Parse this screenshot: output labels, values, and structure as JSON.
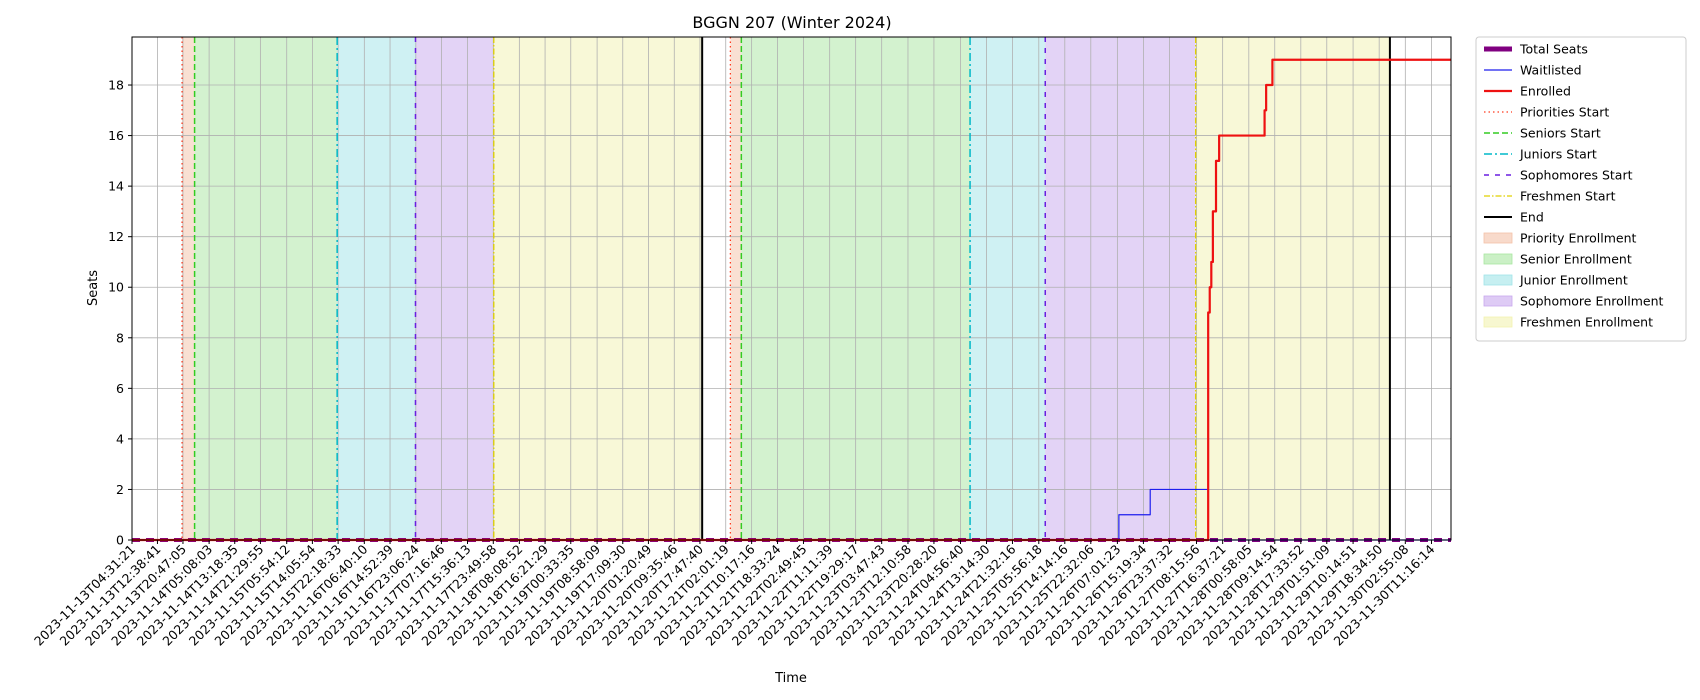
{
  "chart_data": {
    "type": "line",
    "title": "BGGN 207 (Winter 2024)",
    "xlabel": "Time",
    "ylabel": "Seats",
    "ylim": [
      0,
      19.9
    ],
    "yticks": [
      0,
      2,
      4,
      6,
      8,
      10,
      12,
      14,
      16,
      18
    ],
    "grid": true,
    "legend_position": "outside-top-right",
    "x_start": "2023-11-13T04:31:21",
    "x_end": "2023-11-30T17:30:00",
    "xtick_labels": [
      "2023-11-13T04:31:21",
      "2023-11-13T12:38:41",
      "2023-11-13T20:47:05",
      "2023-11-14T05:08:03",
      "2023-11-14T13:18:35",
      "2023-11-14T21:29:55",
      "2023-11-15T05:54:12",
      "2023-11-15T14:05:54",
      "2023-11-15T22:18:33",
      "2023-11-16T06:40:10",
      "2023-11-16T14:52:39",
      "2023-11-16T23:06:24",
      "2023-11-17T07:16:46",
      "2023-11-17T15:36:13",
      "2023-11-17T23:49:58",
      "2023-11-18T08:08:52",
      "2023-11-18T16:21:29",
      "2023-11-19T00:33:35",
      "2023-11-19T08:58:09",
      "2023-11-19T17:09:30",
      "2023-11-20T01:20:49",
      "2023-11-20T09:35:46",
      "2023-11-20T17:47:40",
      "2023-11-21T02:01:19",
      "2023-11-21T10:17:16",
      "2023-11-21T18:33:24",
      "2023-11-22T02:49:45",
      "2023-11-22T11:11:39",
      "2023-11-22T19:29:17",
      "2023-11-23T03:47:43",
      "2023-11-23T12:10:58",
      "2023-11-23T20:28:20",
      "2023-11-24T04:56:40",
      "2023-11-24T13:14:30",
      "2023-11-24T21:32:16",
      "2023-11-25T05:56:18",
      "2023-11-25T14:14:16",
      "2023-11-25T22:32:06",
      "2023-11-26T07:01:23",
      "2023-11-26T15:19:34",
      "2023-11-26T23:37:32",
      "2023-11-27T08:15:56",
      "2023-11-27T16:37:21",
      "2023-11-28T00:58:05",
      "2023-11-28T09:14:54",
      "2023-11-28T17:33:52",
      "2023-11-29T01:51:09",
      "2023-11-29T10:14:51",
      "2023-11-29T18:34:50",
      "2023-11-30T02:55:08",
      "2023-11-30T11:16:14"
    ],
    "spans": [
      {
        "name": "Priority Enrollment",
        "color": "#f4c2a8",
        "start": "2023-11-13T20:30:00",
        "end": "2023-11-14T00:30:00"
      },
      {
        "name": "Senior Enrollment",
        "color": "#a8e6a0",
        "start": "2023-11-14T00:30:00",
        "end": "2023-11-15T22:00:00"
      },
      {
        "name": "Junior Enrollment",
        "color": "#a0e4e8",
        "start": "2023-11-15T22:00:00",
        "end": "2023-11-16T23:00:00"
      },
      {
        "name": "Sophomore Enrollment",
        "color": "#c8a8ee",
        "start": "2023-11-16T23:00:00",
        "end": "2023-11-18T00:00:00"
      },
      {
        "name": "Freshmen Enrollment",
        "color": "#f2f2b0",
        "start": "2023-11-18T00:00:00",
        "end": "2023-11-20T18:30:00"
      },
      {
        "name": "Priority Enrollment",
        "color": "#f4c2a8",
        "start": "2023-11-21T03:30:00",
        "end": "2023-11-21T07:00:00"
      },
      {
        "name": "Senior Enrollment",
        "color": "#a8e6a0",
        "start": "2023-11-21T07:00:00",
        "end": "2023-11-24T08:00:00"
      },
      {
        "name": "Junior Enrollment",
        "color": "#a0e4e8",
        "start": "2023-11-24T08:00:00",
        "end": "2023-11-25T08:00:00"
      },
      {
        "name": "Sophomore Enrollment",
        "color": "#c8a8ee",
        "start": "2023-11-25T08:00:00",
        "end": "2023-11-27T08:00:00"
      },
      {
        "name": "Freshmen Enrollment",
        "color": "#f2f2b0",
        "start": "2023-11-27T08:00:00",
        "end": "2023-11-29T22:00:00"
      }
    ],
    "vlines": [
      {
        "name": "Priorities Start",
        "color": "#ff3b1f",
        "dash": "1.5 3",
        "width": 1.3,
        "x": "2023-11-13T20:30:00"
      },
      {
        "name": "Seniors Start",
        "color": "#33cc22",
        "dash": "6 3",
        "width": 1.5,
        "x": "2023-11-14T00:30:00"
      },
      {
        "name": "Juniors Start",
        "color": "#00b8c8",
        "dash": "8 3 2 3",
        "width": 1.5,
        "x": "2023-11-15T22:00:00"
      },
      {
        "name": "Sophomores Start",
        "color": "#6a1fe0",
        "dash": "5 6",
        "width": 1.5,
        "x": "2023-11-16T23:00:00"
      },
      {
        "name": "Freshmen Start",
        "color": "#e0d000",
        "dash": "6 2 1.5 2",
        "width": 1.3,
        "x": "2023-11-18T00:00:00"
      },
      {
        "name": "End",
        "color": "#000000",
        "dash": "",
        "width": 2,
        "x": "2023-11-20T18:30:00"
      },
      {
        "name": "Priorities Start",
        "color": "#ff3b1f",
        "dash": "1.5 3",
        "width": 1.3,
        "x": "2023-11-21T03:30:00"
      },
      {
        "name": "Seniors Start",
        "color": "#33cc22",
        "dash": "6 3",
        "width": 1.5,
        "x": "2023-11-21T07:00:00"
      },
      {
        "name": "Juniors Start",
        "color": "#00b8c8",
        "dash": "8 3 2 3",
        "width": 1.5,
        "x": "2023-11-24T08:00:00"
      },
      {
        "name": "Sophomores Start",
        "color": "#6a1fe0",
        "dash": "5 6",
        "width": 1.5,
        "x": "2023-11-25T08:00:00"
      },
      {
        "name": "Freshmen Start",
        "color": "#e0d000",
        "dash": "6 2 1.5 2",
        "width": 1.3,
        "x": "2023-11-27T08:00:00"
      },
      {
        "name": "End",
        "color": "#000000",
        "dash": "",
        "width": 2,
        "x": "2023-11-29T22:00:00"
      }
    ],
    "series": [
      {
        "name": "Total Seats",
        "color": "#800080",
        "width": 4,
        "dash": "8 6",
        "points": [
          [
            "2023-11-13T04:31:21",
            0
          ],
          [
            "2023-11-30T17:30:00",
            0
          ]
        ]
      },
      {
        "name": "Waitlisted",
        "color": "#1f1fee",
        "width": 1.2,
        "dash": "",
        "step": true,
        "points": [
          [
            "2023-11-13T04:31:21",
            0
          ],
          [
            "2023-11-26T07:30:00",
            0
          ],
          [
            "2023-11-26T07:30:00",
            1
          ],
          [
            "2023-11-26T17:30:00",
            1
          ],
          [
            "2023-11-26T17:30:00",
            2
          ],
          [
            "2023-11-27T12:00:00",
            2
          ],
          [
            "2023-11-27T12:00:00",
            0
          ],
          [
            "2023-11-30T17:30:00",
            0
          ]
        ]
      },
      {
        "name": "Enrolled",
        "color": "#ee1111",
        "width": 2.2,
        "dash": "",
        "step": true,
        "points": [
          [
            "2023-11-13T04:31:21",
            0
          ],
          [
            "2023-11-27T12:00:00",
            0
          ],
          [
            "2023-11-27T12:00:00",
            9
          ],
          [
            "2023-11-27T12:30:00",
            9
          ],
          [
            "2023-11-27T12:30:00",
            10
          ],
          [
            "2023-11-27T13:00:00",
            10
          ],
          [
            "2023-11-27T13:00:00",
            11
          ],
          [
            "2023-11-27T13:30:00",
            11
          ],
          [
            "2023-11-27T13:30:00",
            13
          ],
          [
            "2023-11-27T14:30:00",
            13
          ],
          [
            "2023-11-27T14:30:00",
            15
          ],
          [
            "2023-11-27T15:30:00",
            15
          ],
          [
            "2023-11-27T15:30:00",
            16
          ],
          [
            "2023-11-28T06:00:00",
            16
          ],
          [
            "2023-11-28T06:00:00",
            17
          ],
          [
            "2023-11-28T06:30:00",
            17
          ],
          [
            "2023-11-28T06:30:00",
            18
          ],
          [
            "2023-11-28T08:30:00",
            18
          ],
          [
            "2023-11-28T08:30:00",
            19
          ],
          [
            "2023-11-30T17:30:00",
            19
          ]
        ]
      }
    ],
    "legend": [
      {
        "label": "Total Seats",
        "kind": "line",
        "color": "#800080",
        "dash": "",
        "width": 5
      },
      {
        "label": "Waitlisted",
        "kind": "line",
        "color": "#1f1fee",
        "dash": "",
        "width": 1.2
      },
      {
        "label": "Enrolled",
        "kind": "line",
        "color": "#ee1111",
        "dash": "",
        "width": 2.2
      },
      {
        "label": "Priorities Start",
        "kind": "line",
        "color": "#ff3b1f",
        "dash": "1.5 3",
        "width": 1.3
      },
      {
        "label": "Seniors Start",
        "kind": "line",
        "color": "#33cc22",
        "dash": "6 3",
        "width": 1.5
      },
      {
        "label": "Juniors Start",
        "kind": "line",
        "color": "#00b8c8",
        "dash": "8 3 2 3",
        "width": 1.5
      },
      {
        "label": "Sophomores Start",
        "kind": "line",
        "color": "#6a1fe0",
        "dash": "5 6",
        "width": 1.5
      },
      {
        "label": "Freshmen Start",
        "kind": "line",
        "color": "#e0d000",
        "dash": "6 2 1.5 2",
        "width": 1.3
      },
      {
        "label": "End",
        "kind": "line",
        "color": "#000000",
        "dash": "",
        "width": 2
      },
      {
        "label": "Priority Enrollment",
        "kind": "patch",
        "color": "#f4c2a8"
      },
      {
        "label": "Senior Enrollment",
        "kind": "patch",
        "color": "#a8e6a0"
      },
      {
        "label": "Junior Enrollment",
        "kind": "patch",
        "color": "#a0e4e8"
      },
      {
        "label": "Sophomore Enrollment",
        "kind": "patch",
        "color": "#c8a8ee"
      },
      {
        "label": "Freshmen Enrollment",
        "kind": "patch",
        "color": "#f2f2b0"
      }
    ]
  }
}
